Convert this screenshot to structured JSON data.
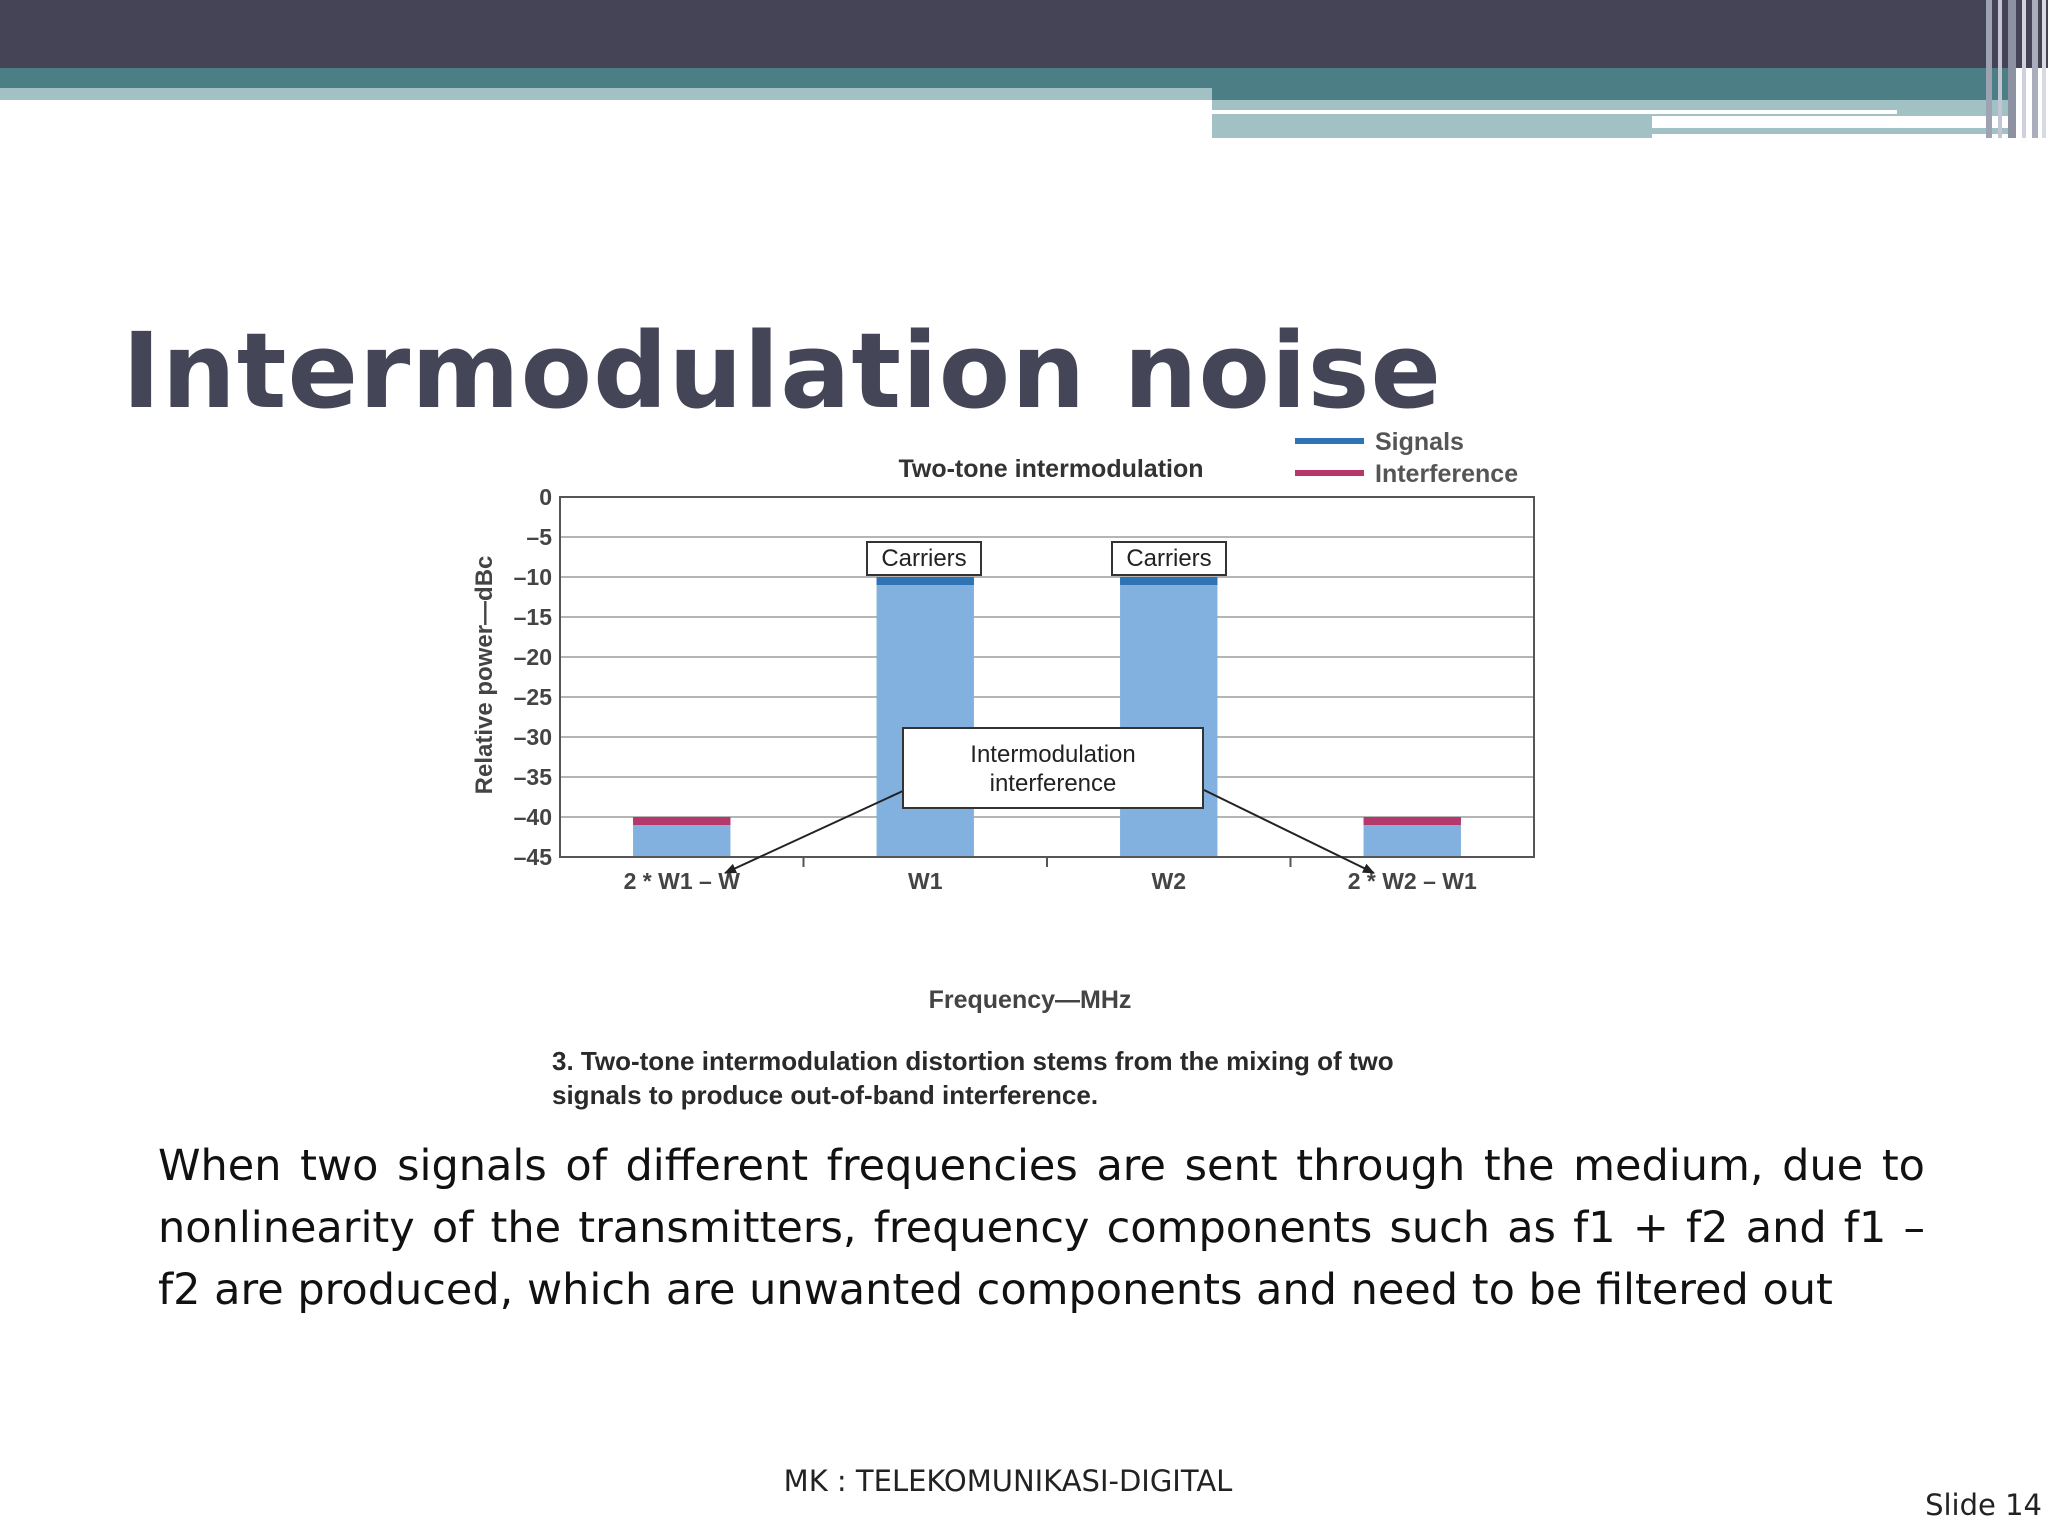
{
  "slide": {
    "title": "Intermodulation noise",
    "body": "When two signals of different frequencies are sent through the medium, due to nonlinearity of the transmitters, frequency components such as f1 + f2 and f1 – f2 are produced, which are unwanted components and need to be filtered out",
    "footer": "MK : TELEKOMUNIKASI-DIGITAL",
    "slide_number": "Slide 14",
    "colors": {
      "top_bar": "#444456",
      "accent_teal": "#4b7f85",
      "accent_light": "#a1c1c4",
      "title": "#454558"
    }
  },
  "figure": {
    "caption_line1": "3. Two-tone intermodulation distortion stems from the mixing of two",
    "caption_line2": "signals to produce out-of-band interference.",
    "annotation_carriers": "Carriers",
    "annotation_im_line1": "Intermodulation",
    "annotation_im_line2": "interference"
  },
  "chart_data": {
    "type": "bar",
    "title": "Two-tone intermodulation",
    "xlabel": "Frequency—MHz",
    "ylabel": "Relative power—dBc",
    "categories": [
      "2 * W1 – W",
      "W1",
      "W2",
      "2 * W2 – W1"
    ],
    "values": [
      -40,
      -10,
      -10,
      -40
    ],
    "bar_roles": [
      "Interference",
      "Signals",
      "Signals",
      "Interference"
    ],
    "ylim": [
      -45,
      0
    ],
    "yticks": [
      0,
      -5,
      -10,
      -15,
      -20,
      -25,
      -30,
      -35,
      -40,
      -45
    ],
    "ytick_labels": [
      "0",
      "–5",
      "–10",
      "–15",
      "–20",
      "–25",
      "–30",
      "–35",
      "–40",
      "–45"
    ],
    "legend": [
      {
        "name": "Signals",
        "color": "#2e74b5"
      },
      {
        "name": "Interference",
        "color": "#b5386a"
      }
    ],
    "legend_position": "top-right",
    "bar_fill": "#82b1e0",
    "grid": true
  }
}
